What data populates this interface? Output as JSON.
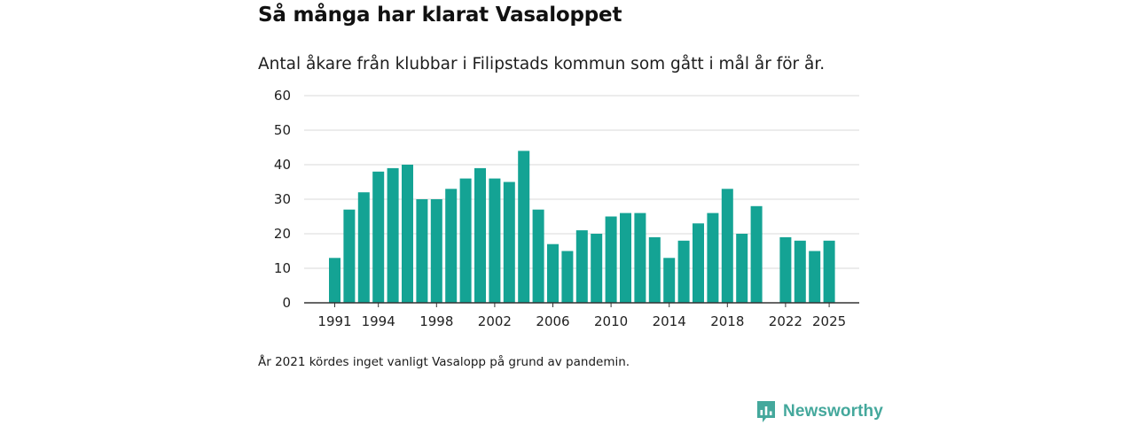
{
  "header": {
    "title": "Så många har klarat Vasaloppet",
    "subtitle": "Antal åkare från klubbar i Filipstads kommun som gått i mål år för år."
  },
  "footer": {
    "note": "År 2021 kördes inget vanligt Vasalopp på grund av pandemin."
  },
  "brand": {
    "name": "Newsworthy",
    "icon": "newsworthy-logo-icon",
    "color": "#44a89c"
  },
  "chart_data": {
    "type": "bar",
    "title": "Så många har klarat Vasaloppet",
    "subtitle": "Antal åkare från klubbar i Filipstads kommun som gått i mål år för år.",
    "xlabel": "",
    "ylabel": "",
    "ylim": [
      0,
      60
    ],
    "yticks": [
      0,
      10,
      20,
      30,
      40,
      50,
      60
    ],
    "xticks": [
      1991,
      1994,
      1998,
      2002,
      2006,
      2010,
      2014,
      2018,
      2022,
      2025
    ],
    "grid": true,
    "bar_color": "#14a394",
    "categories": [
      1991,
      1992,
      1993,
      1994,
      1995,
      1996,
      1997,
      1998,
      1999,
      2000,
      2001,
      2002,
      2003,
      2004,
      2005,
      2006,
      2007,
      2008,
      2009,
      2010,
      2011,
      2012,
      2013,
      2014,
      2015,
      2016,
      2017,
      2018,
      2019,
      2020,
      2021,
      2022,
      2023,
      2024,
      2025
    ],
    "values": [
      13,
      27,
      32,
      38,
      39,
      40,
      30,
      30,
      33,
      36,
      39,
      36,
      35,
      44,
      27,
      17,
      15,
      21,
      20,
      25,
      26,
      26,
      19,
      13,
      18,
      23,
      26,
      33,
      20,
      28,
      null,
      19,
      18,
      15,
      18
    ]
  }
}
